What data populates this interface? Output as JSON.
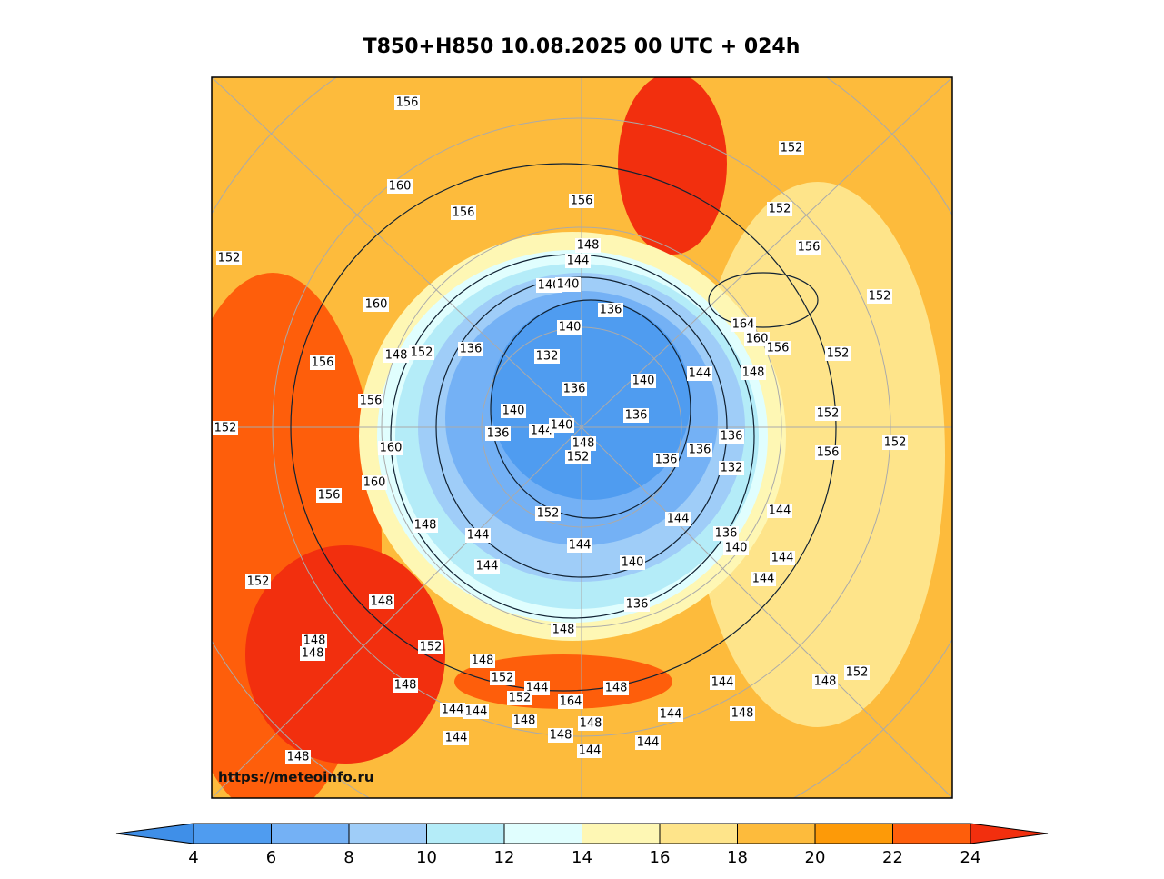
{
  "title": "T850+H850 10.08.2025 00 UTC + 024h",
  "watermark": "https://meteoinfo.ru",
  "colorbar": {
    "ticks": [
      4,
      6,
      8,
      10,
      12,
      14,
      16,
      18,
      20,
      22,
      24
    ],
    "colors": [
      "#3f8fe8",
      "#4f9cf0",
      "#74b1f5",
      "#9fcdf8",
      "#b4ecf8",
      "#e0fefe",
      "#fef7b4",
      "#fee48a",
      "#fdbb3c",
      "#fd9a08",
      "#fe5e0b",
      "#f22f0e"
    ]
  },
  "contour_labels": [
    156,
    160,
    156,
    156,
    148,
    144,
    140,
    140,
    136,
    164,
    160,
    156,
    152,
    152,
    152,
    156,
    152,
    152,
    160,
    156,
    148,
    152,
    136,
    132,
    140,
    136,
    148,
    144,
    140,
    136,
    140,
    136,
    144,
    140,
    148,
    152,
    136,
    136,
    136,
    132,
    152,
    152,
    156,
    156,
    160,
    160,
    156,
    152,
    148,
    144,
    144,
    152,
    144,
    140,
    136,
    144,
    136,
    140,
    144,
    144,
    144,
    152,
    148,
    148,
    152,
    148,
    152,
    144,
    148,
    144,
    148,
    152,
    144,
    144,
    148,
    148,
    144,
    148,
    144,
    144,
    144,
    148,
    148,
    148,
    148,
    152,
    164,
    148
  ]
}
